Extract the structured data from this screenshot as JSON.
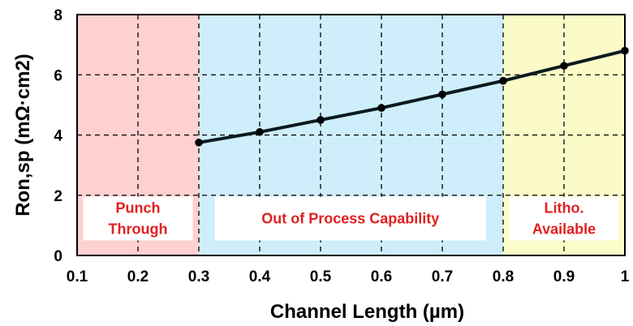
{
  "chart_data": {
    "type": "line",
    "title": "",
    "xlabel": "Channel Length  (µm)",
    "ylabel": "Ron,sp (mΩ·cm2)",
    "xlim": [
      0.1,
      1.0
    ],
    "ylim": [
      0,
      8
    ],
    "x_ticks": [
      "0.1",
      "0.2",
      "0.3",
      "0.4",
      "0.5",
      "0.6",
      "0.7",
      "0.8",
      "0.9",
      "1"
    ],
    "y_ticks": [
      "0",
      "2",
      "4",
      "6",
      "8"
    ],
    "grid": true,
    "series": [
      {
        "name": "Ron,sp",
        "color": "#0a1a1f",
        "x": [
          0.3,
          0.4,
          0.5,
          0.6,
          0.7,
          0.8,
          0.9,
          1.0
        ],
        "y": [
          3.75,
          4.1,
          4.5,
          4.9,
          5.35,
          5.8,
          6.3,
          6.8
        ]
      }
    ],
    "regions": [
      {
        "name": "punch-through",
        "x_range": [
          0.1,
          0.3
        ],
        "lines": [
          "Punch",
          "Through"
        ],
        "color": "#ffd0d0"
      },
      {
        "name": "out-of-process-capability",
        "x_range": [
          0.3,
          0.8
        ],
        "lines": [
          "Out of Process Capability"
        ],
        "color": "#cdeefa"
      },
      {
        "name": "litho-available",
        "x_range": [
          0.8,
          1.0
        ],
        "lines": [
          "Litho.",
          "Available"
        ],
        "color": "#fbfbc8"
      }
    ]
  }
}
